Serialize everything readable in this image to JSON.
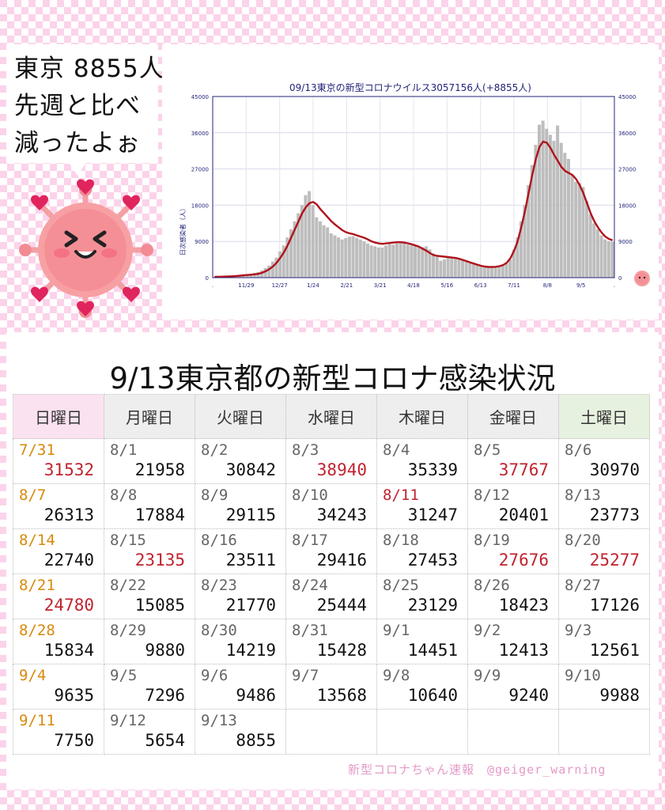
{
  "speech": {
    "lines": [
      "東京 8855人",
      "先週と比べ",
      "減ったよぉ"
    ]
  },
  "chart_data": {
    "type": "bar",
    "title": "09/13東京の新型コロナウイルス3057156人(+8855人)",
    "ylabel": "日次感染者（人）",
    "ylim": [
      0,
      45000
    ],
    "y_ticks": [
      "0",
      "9000",
      "18000",
      "27000",
      "36000",
      "45000"
    ],
    "x_ticks": [
      ".",
      "11/29",
      "12/27",
      "1/24",
      "2/21",
      "3/21",
      "4/18",
      "5/16",
      "6/13",
      "7/11",
      "8/8",
      "9/5",
      "."
    ],
    "grid": true,
    "colors": {
      "bars": "#bdbdbd",
      "avg_line": "#b0121b",
      "title": "#23237a",
      "axis_text": "#23237a"
    },
    "series": [
      {
        "kind": "daily",
        "values": [
          200,
          250,
          300,
          400,
          450,
          500,
          600,
          700,
          800,
          900,
          1000,
          1200,
          1400,
          1800,
          2400,
          3000,
          4000,
          5000,
          6500,
          8000,
          10000,
          12000,
          14000,
          16000,
          18000,
          20500,
          21500,
          18000,
          15000,
          14000,
          13000,
          12500,
          11000,
          10500,
          10000,
          9500,
          9800,
          10200,
          10300,
          9900,
          9500,
          9000,
          8500,
          8000,
          7800,
          7500,
          7500,
          8000,
          8300,
          8200,
          8500,
          8600,
          8800,
          8200,
          8000,
          7800,
          7500,
          7600,
          7800,
          7000,
          6000,
          5500,
          4200,
          4500,
          5000,
          5200,
          4800,
          4700,
          4500,
          4000,
          3800,
          3500,
          3200,
          3000,
          2800,
          2500,
          2600,
          2700,
          2800,
          3000,
          3500,
          4500,
          7000,
          10000,
          14000,
          18000,
          23000,
          28000,
          33000,
          38000,
          39000,
          37000,
          35500,
          34000,
          37800,
          33500,
          31000,
          29500,
          25500,
          23800,
          23500,
          22500,
          19000,
          15800,
          13500,
          12000,
          10500,
          9500,
          9000,
          8855
        ]
      },
      {
        "kind": "7day_avg",
        "values": [
          200,
          220,
          240,
          280,
          320,
          360,
          420,
          500,
          580,
          650,
          720,
          820,
          950,
          1200,
          1600,
          2100,
          2800,
          3700,
          4900,
          6300,
          8000,
          10000,
          12000,
          14000,
          16000,
          17500,
          18500,
          18800,
          18200,
          17000,
          16000,
          15000,
          14000,
          13200,
          12500,
          11800,
          11300,
          11000,
          10800,
          10500,
          10200,
          9900,
          9500,
          9000,
          8700,
          8500,
          8400,
          8500,
          8600,
          8700,
          8800,
          8800,
          8700,
          8500,
          8300,
          8000,
          7700,
          7200,
          6700,
          6100,
          5600,
          5400,
          5300,
          5200,
          5100,
          5000,
          4900,
          4700,
          4400,
          4100,
          3800,
          3500,
          3200,
          2950,
          2750,
          2650,
          2650,
          2700,
          2850,
          3100,
          3700,
          4800,
          6600,
          9000,
          12500,
          16500,
          21000,
          25500,
          29500,
          32500,
          33800,
          33500,
          32200,
          30500,
          29000,
          27500,
          26500,
          26000,
          25500,
          24500,
          23000,
          21000,
          18500,
          16000,
          14000,
          12500,
          11200,
          10200,
          9600,
          9300
        ]
      }
    ]
  },
  "table": {
    "title": "9/13東京都の新型コロナ感染状況",
    "headers": [
      "日曜日",
      "月曜日",
      "火曜日",
      "水曜日",
      "木曜日",
      "金曜日",
      "土曜日"
    ],
    "rows": [
      [
        {
          "d": "7/31",
          "n": "31532",
          "dc": "orange",
          "nc": "red"
        },
        {
          "d": "8/1",
          "n": "21958"
        },
        {
          "d": "8/2",
          "n": "30842"
        },
        {
          "d": "8/3",
          "n": "38940",
          "nc": "red"
        },
        {
          "d": "8/4",
          "n": "35339"
        },
        {
          "d": "8/5",
          "n": "37767",
          "nc": "red"
        },
        {
          "d": "8/6",
          "n": "30970"
        }
      ],
      [
        {
          "d": "8/7",
          "n": "26313",
          "dc": "orange"
        },
        {
          "d": "8/8",
          "n": "17884"
        },
        {
          "d": "8/9",
          "n": "29115"
        },
        {
          "d": "8/10",
          "n": "34243"
        },
        {
          "d": "8/11",
          "n": "31247",
          "dc": "red"
        },
        {
          "d": "8/12",
          "n": "20401"
        },
        {
          "d": "8/13",
          "n": "23773"
        }
      ],
      [
        {
          "d": "8/14",
          "n": "22740",
          "dc": "orange"
        },
        {
          "d": "8/15",
          "n": "23135",
          "nc": "red"
        },
        {
          "d": "8/16",
          "n": "23511"
        },
        {
          "d": "8/17",
          "n": "29416"
        },
        {
          "d": "8/18",
          "n": "27453"
        },
        {
          "d": "8/19",
          "n": "27676",
          "nc": "red"
        },
        {
          "d": "8/20",
          "n": "25277",
          "nc": "red"
        }
      ],
      [
        {
          "d": "8/21",
          "n": "24780",
          "dc": "orange",
          "nc": "red"
        },
        {
          "d": "8/22",
          "n": "15085"
        },
        {
          "d": "8/23",
          "n": "21770"
        },
        {
          "d": "8/24",
          "n": "25444"
        },
        {
          "d": "8/25",
          "n": "23129"
        },
        {
          "d": "8/26",
          "n": "18423"
        },
        {
          "d": "8/27",
          "n": "17126"
        }
      ],
      [
        {
          "d": "8/28",
          "n": "15834",
          "dc": "orange"
        },
        {
          "d": "8/29",
          "n": "9880"
        },
        {
          "d": "8/30",
          "n": "14219"
        },
        {
          "d": "8/31",
          "n": "15428"
        },
        {
          "d": "9/1",
          "n": "14451"
        },
        {
          "d": "9/2",
          "n": "12413"
        },
        {
          "d": "9/3",
          "n": "12561"
        }
      ],
      [
        {
          "d": "9/4",
          "n": "9635",
          "dc": "orange"
        },
        {
          "d": "9/5",
          "n": "7296"
        },
        {
          "d": "9/6",
          "n": "9486"
        },
        {
          "d": "9/7",
          "n": "13568"
        },
        {
          "d": "9/8",
          "n": "10640"
        },
        {
          "d": "9/9",
          "n": "9240"
        },
        {
          "d": "9/10",
          "n": "9988"
        }
      ],
      [
        {
          "d": "9/11",
          "n": "7750",
          "dc": "orange"
        },
        {
          "d": "9/12",
          "n": "5654"
        },
        {
          "d": "9/13",
          "n": "8855"
        },
        {
          "d": "",
          "n": ""
        },
        {
          "d": "",
          "n": ""
        },
        {
          "d": "",
          "n": ""
        },
        {
          "d": "",
          "n": ""
        }
      ]
    ]
  },
  "credit": "新型コロナちゃん速報　@geiger_warning"
}
